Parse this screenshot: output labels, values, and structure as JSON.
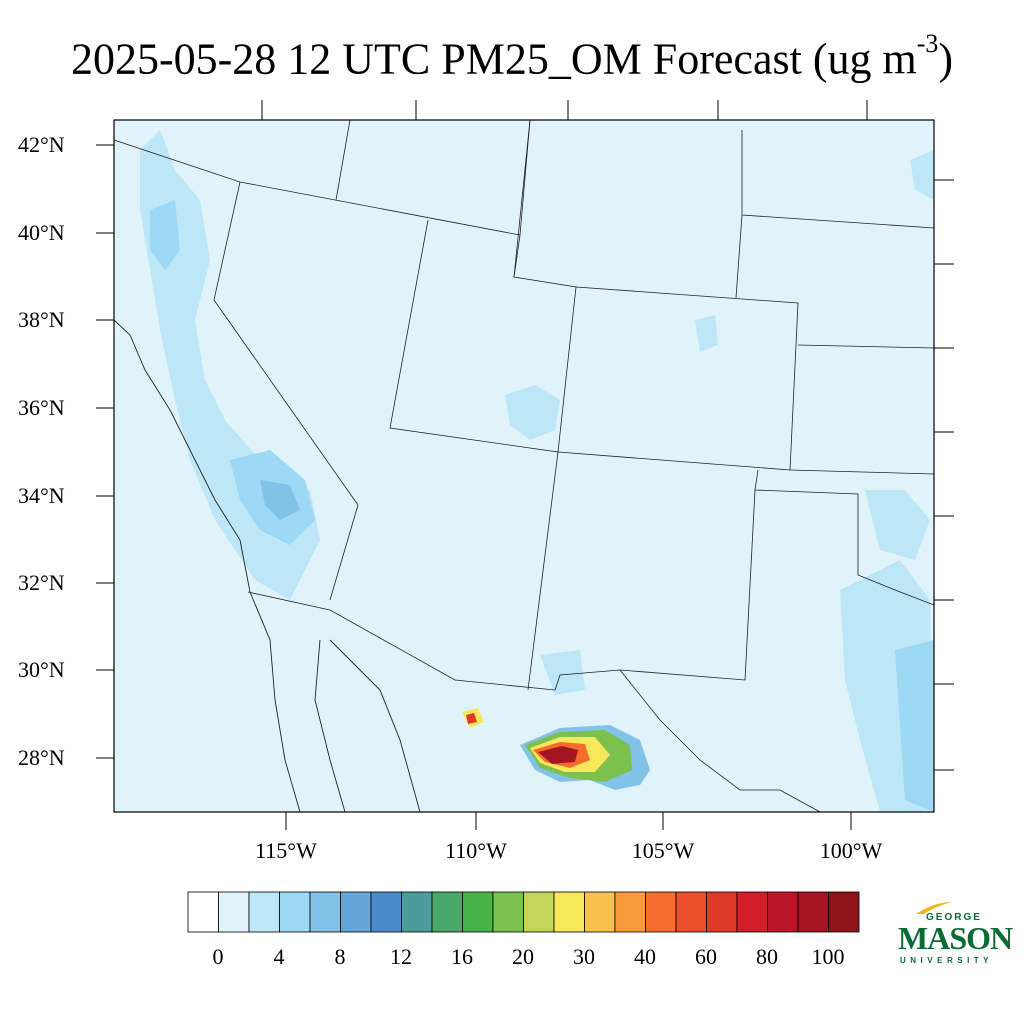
{
  "title": {
    "main": "2025-05-28 12 UTC PM25_OM Forecast (ug m",
    "superscript": "-3",
    "close": ")"
  },
  "map": {
    "background_color": "#e0f3fb",
    "lat_labels": [
      "42°N",
      "40°N",
      "38°N",
      "36°N",
      "34°N",
      "32°N",
      "30°N",
      "28°N"
    ],
    "lon_labels": [
      "115°W",
      "110°W",
      "105°W",
      "100°W"
    ]
  },
  "colorbar": {
    "colors": [
      "#ffffff",
      "#e0f3fb",
      "#bde6f7",
      "#9dd8f4",
      "#82c1e8",
      "#65a7da",
      "#4a8bca",
      "#4a9d9c",
      "#4aa96a",
      "#47b34a",
      "#7cc14d",
      "#c3d65a",
      "#f7e75a",
      "#f9c04b",
      "#f99b3c",
      "#f56d2c",
      "#ea4e2c",
      "#df3a28",
      "#d21f29",
      "#ba1627",
      "#a51523",
      "#8e1419"
    ],
    "labels": [
      "0",
      "4",
      "8",
      "12",
      "16",
      "20",
      "30",
      "40",
      "60",
      "80",
      "100"
    ]
  },
  "logo": {
    "line1": "GEORGE",
    "line2": "MASON",
    "line3": "UNIVERSITY",
    "color": "#0b6b33",
    "accent": "#f2b51b"
  }
}
